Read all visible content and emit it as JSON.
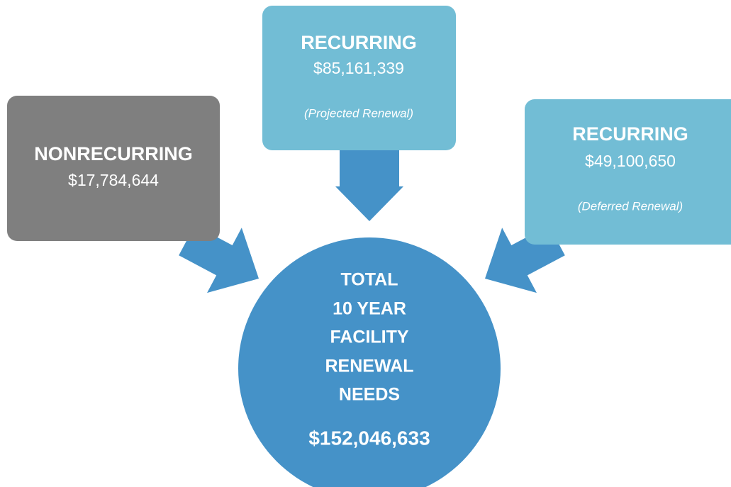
{
  "nodes": [
    {
      "title": "NONRECURRING",
      "amount": "$17,784,644"
    },
    {
      "title": "RECURRING",
      "amount": "$85,161,339",
      "note": "(Projected Renewal)"
    },
    {
      "title": "RECURRING",
      "amount": "$49,100,650",
      "note": "(Deferred Renewal)"
    }
  ],
  "total": {
    "lines": [
      "TOTAL",
      "10 YEAR",
      "FACILITY",
      "RENEWAL",
      "NEEDS"
    ],
    "amount": "$152,046,633"
  }
}
